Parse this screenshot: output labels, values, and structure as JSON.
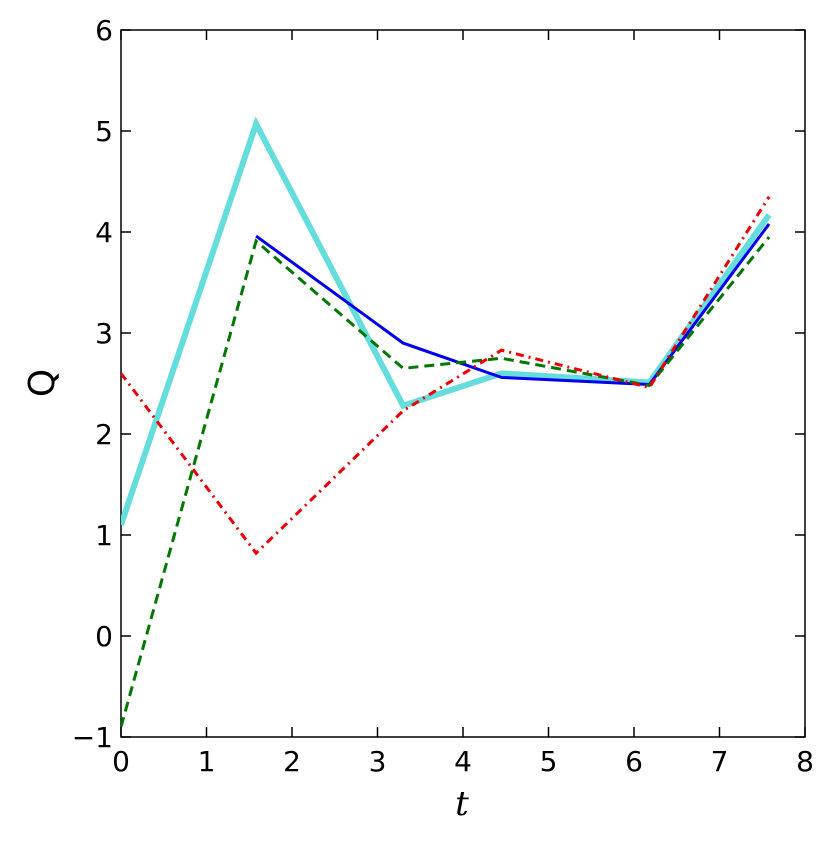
{
  "chart_data": {
    "type": "line",
    "x_label": "t",
    "y_label": "Q",
    "x": [
      0,
      1.58,
      3.3,
      4.45,
      6.18,
      7.58
    ],
    "series": [
      {
        "color": "#66dddd",
        "width": 6,
        "dash": "",
        "values": [
          1.1,
          5.07,
          2.28,
          2.6,
          2.51,
          4.17
        ]
      },
      {
        "color": "#0000ee",
        "width": 3,
        "dash": "",
        "values": [
          null,
          3.96,
          2.9,
          2.56,
          2.49,
          4.08
        ]
      },
      {
        "color": "#007700",
        "width": 3,
        "dash": "10 6",
        "values": [
          -0.9,
          3.91,
          2.65,
          2.75,
          2.48,
          3.95
        ]
      },
      {
        "color": "#ee0000",
        "width": 3,
        "dash": "8 5 2 5",
        "values": [
          2.6,
          0.82,
          2.23,
          2.83,
          2.46,
          4.35
        ]
      }
    ],
    "xlim": [
      0,
      8
    ],
    "xticks": [
      0,
      1,
      2,
      3,
      4,
      5,
      6,
      7,
      8
    ],
    "ylim": [
      -1,
      6
    ],
    "yticks": [
      {
        "value": -1,
        "label": "−1"
      },
      0,
      1,
      2,
      3,
      4,
      5,
      6
    ]
  }
}
